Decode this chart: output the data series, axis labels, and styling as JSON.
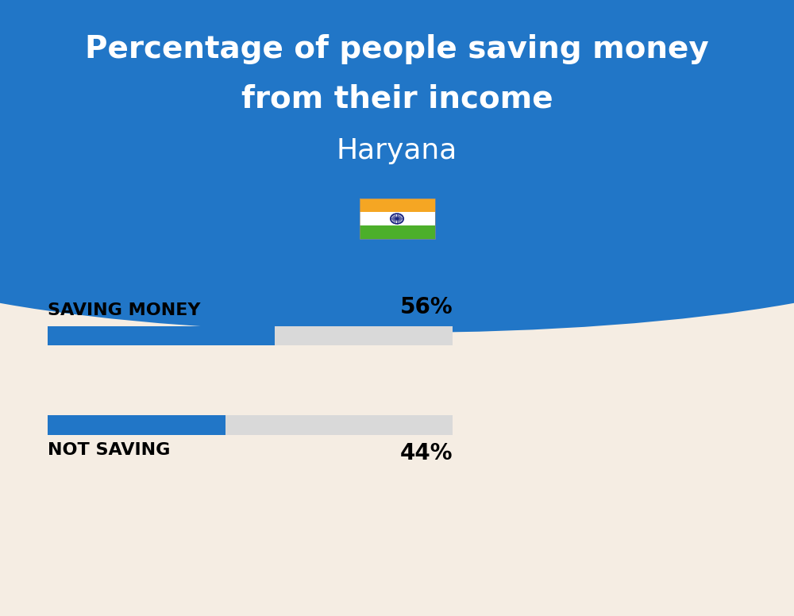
{
  "title_line1": "Percentage of people saving money",
  "title_line2": "from their income",
  "subtitle": "Haryana",
  "background_color": "#f5ede3",
  "header_color": "#2176c7",
  "bar_color": "#2176c7",
  "bar_bg_color": "#d9d9d9",
  "categories": [
    "SAVING MONEY",
    "NOT SAVING"
  ],
  "values": [
    56,
    44
  ],
  "title_fontsize": 28,
  "subtitle_fontsize": 26,
  "category_fontsize": 16,
  "value_fontsize": 20,
  "fig_width": 10.0,
  "fig_height": 7.76,
  "flag_orange": "#f5a623",
  "flag_white": "#ffffff",
  "flag_green": "#4caf2a",
  "flag_navy": "#1a237e"
}
